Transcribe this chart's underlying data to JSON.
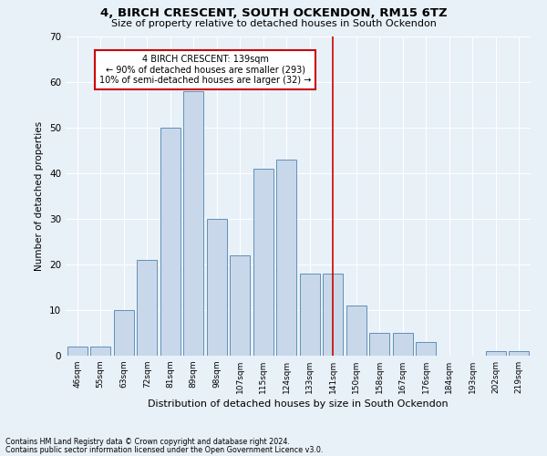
{
  "title": "4, BIRCH CRESCENT, SOUTH OCKENDON, RM15 6TZ",
  "subtitle": "Size of property relative to detached houses in South Ockendon",
  "xlabel": "Distribution of detached houses by size in South Ockendon",
  "ylabel": "Number of detached properties",
  "footnote1": "Contains HM Land Registry data © Crown copyright and database right 2024.",
  "footnote2": "Contains public sector information licensed under the Open Government Licence v3.0.",
  "bar_labels": [
    "46sqm",
    "55sqm",
    "63sqm",
    "72sqm",
    "81sqm",
    "89sqm",
    "98sqm",
    "107sqm",
    "115sqm",
    "124sqm",
    "133sqm",
    "141sqm",
    "150sqm",
    "158sqm",
    "167sqm",
    "176sqm",
    "184sqm",
    "193sqm",
    "202sqm",
    "219sqm"
  ],
  "bar_values": [
    2,
    2,
    10,
    21,
    50,
    58,
    30,
    22,
    41,
    43,
    18,
    18,
    11,
    5,
    5,
    3,
    0,
    0,
    1,
    1
  ],
  "bar_color": "#c8d8ea",
  "bar_edge_color": "#6090b8",
  "red_line_index": 11,
  "red_line_color": "#cc0000",
  "annotation_title": "4 BIRCH CRESCENT: 139sqm",
  "annotation_line1": "← 90% of detached houses are smaller (293)",
  "annotation_line2": "10% of semi-detached houses are larger (32) →",
  "annotation_box_color": "#ffffff",
  "annotation_box_edge": "#cc0000",
  "ylim": [
    0,
    70
  ],
  "yticks": [
    0,
    10,
    20,
    30,
    40,
    50,
    60,
    70
  ],
  "bg_color": "#e8f0f8",
  "grid_color": "#ffffff"
}
